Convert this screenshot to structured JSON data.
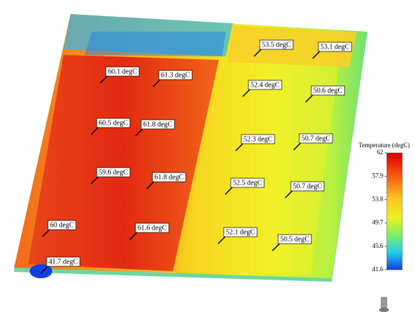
{
  "legend": {
    "title": "Temperature (degC)",
    "ticks": [
      "62",
      "57.9",
      "53.8",
      "49.7",
      "45.6",
      "41.6"
    ]
  },
  "probes": [
    {
      "label": "60.1 degC"
    },
    {
      "label": "61.3 degC"
    },
    {
      "label": "60.5 degC"
    },
    {
      "label": "61.8 degC"
    },
    {
      "label": "59.6 degC"
    },
    {
      "label": "61.8 degC"
    },
    {
      "label": "60 degC"
    },
    {
      "label": "61.6 degC"
    },
    {
      "label": "41.7 degC"
    },
    {
      "label": "53.5 degC"
    },
    {
      "label": "53.1 degC"
    },
    {
      "label": "52.4 degC"
    },
    {
      "label": "50.6 degC"
    },
    {
      "label": "52.3 degC"
    },
    {
      "label": "50.7 degC"
    },
    {
      "label": "52.5 degC"
    },
    {
      "label": "50.7 degC"
    },
    {
      "label": "52.1 degC"
    },
    {
      "label": "50.5 degC"
    }
  ]
}
